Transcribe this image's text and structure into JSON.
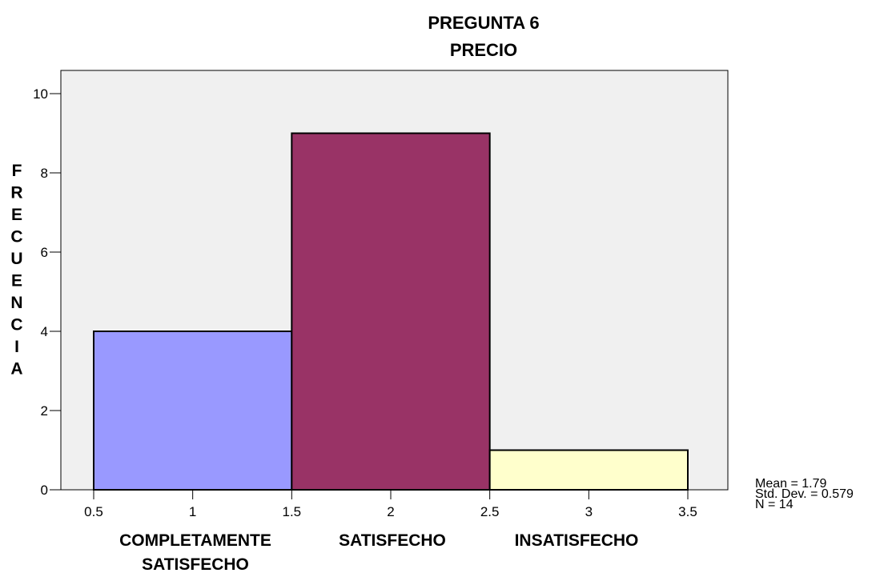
{
  "chart_data": {
    "type": "bar",
    "title": [
      "PREGUNTA 6",
      "PRECIO"
    ],
    "ylabel": "FRECUENCIA",
    "ylim": [
      0,
      10.5
    ],
    "yticks": [
      "0",
      "2",
      "4",
      "6",
      "8",
      "10"
    ],
    "xlim": [
      0.5,
      3.5
    ],
    "xticks": [
      "0.5",
      "1",
      "1.5",
      "2",
      "2.5",
      "3",
      "3.5"
    ],
    "bins": [
      {
        "from": 0.5,
        "to": 1.5,
        "value": 4,
        "color": "#9999FF"
      },
      {
        "from": 1.5,
        "to": 2.5,
        "value": 9,
        "color": "#993366"
      },
      {
        "from": 2.5,
        "to": 3.5,
        "value": 1,
        "color": "#FFFFCC"
      }
    ],
    "category_labels": [
      [
        "COMPLETAMENTE",
        "SATISFECHO"
      ],
      [
        "SATISFECHO"
      ],
      [
        "INSATISFECHO"
      ]
    ],
    "stats": [
      "Mean = 1.79",
      "Std. Dev. = 0.579",
      "N = 14"
    ],
    "plot_background": "#F0F0F0",
    "grid": false,
    "legend": "none"
  }
}
